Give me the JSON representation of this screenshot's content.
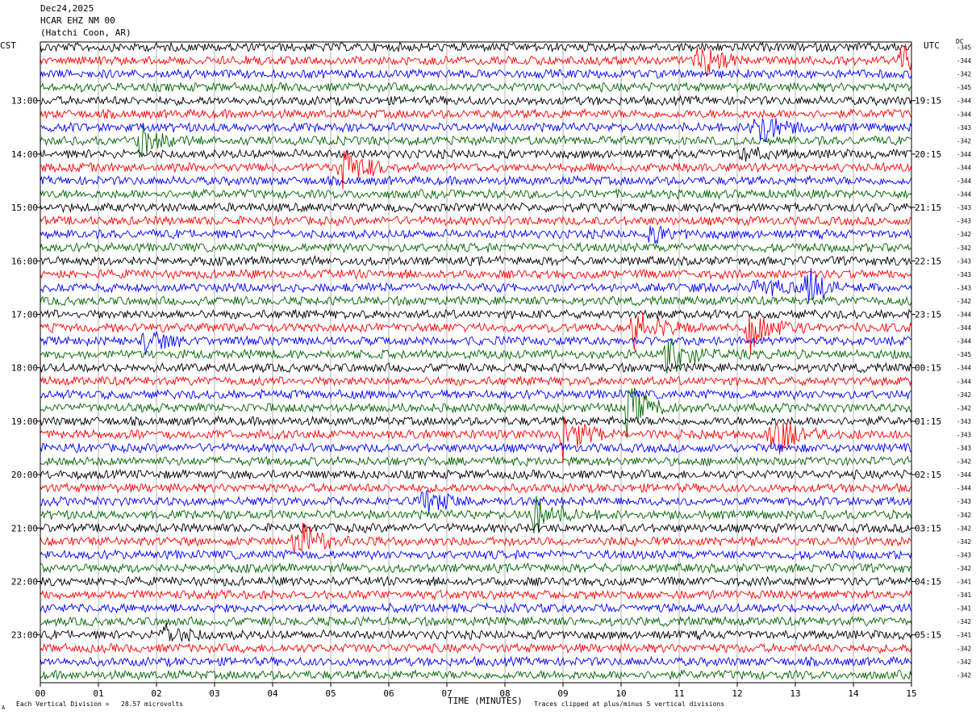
{
  "header": {
    "date": "Dec24,2025",
    "station": "HCAR EHZ NM 00",
    "location": "(Hatchi Coon, AR)",
    "left_tz": "CST",
    "right_tz": "UTC",
    "dc_label": "DC"
  },
  "footer": {
    "scale_text": "Each Vertical Division =   28.57 microvolts",
    "clip_text": "Traces clipped at plus/minus 5 vertical divisions",
    "corner_mark": "A"
  },
  "chart_data": {
    "type": "line",
    "title": "",
    "xlabel": "TIME (MINUTES)",
    "ylabel": "",
    "xlim": [
      0,
      15
    ],
    "x_ticks": [
      "00",
      "01",
      "02",
      "03",
      "04",
      "05",
      "06",
      "07",
      "08",
      "09",
      "10",
      "11",
      "12",
      "13",
      "14",
      "15"
    ],
    "traces_per_hour": 4,
    "trace_interval_minutes": 15,
    "trace_colors": [
      "#000000",
      "#ff0000",
      "#0000ff",
      "#006400"
    ],
    "grid": true,
    "left_time_labels": [
      "13:00",
      "14:00",
      "15:00",
      "16:00",
      "17:00",
      "18:00",
      "19:00",
      "20:00",
      "21:00",
      "22:00",
      "23:00"
    ],
    "left_label_start_row": 4,
    "right_time_labels": [
      "19:15",
      "20:15",
      "21:15",
      "22:15",
      "23:15",
      "00:15",
      "01:15",
      "02:15",
      "03:15",
      "04:15",
      "05:15"
    ],
    "right_label_start_row": 4,
    "dc_offsets": [
      "-345",
      "-344",
      "-342",
      "-345",
      "-344",
      "-344",
      "-343",
      "-342",
      "-344",
      "-344",
      "-344",
      "-344",
      "-343",
      "-343",
      "-342",
      "-342",
      "-343",
      "-343",
      "-343",
      "-342",
      "-344",
      "-344",
      "-344",
      "-345",
      "-344",
      "-344",
      "-342",
      "-342",
      "-343",
      "-343",
      "-343",
      "-342",
      "-344",
      "-344",
      "-343",
      "-342",
      "-342",
      "-342",
      "-343",
      "-342",
      "-341",
      "-341",
      "-341",
      "-342",
      "-341",
      "-342",
      "-342",
      "-342"
    ],
    "events": [
      {
        "row": 1,
        "minute": 11.3,
        "amplitude": 4.5
      },
      {
        "row": 1,
        "minute": 14.8,
        "amplitude": 4.5
      },
      {
        "row": 6,
        "minute": 12.3,
        "amplitude": 5
      },
      {
        "row": 7,
        "minute": 1.7,
        "amplitude": 3
      },
      {
        "row": 8,
        "minute": 12.1,
        "amplitude": 1.5
      },
      {
        "row": 9,
        "minute": 5.2,
        "amplitude": 5
      },
      {
        "row": 14,
        "minute": 10.5,
        "amplitude": 1.5
      },
      {
        "row": 18,
        "minute": 12.3,
        "amplitude": 2.5
      },
      {
        "row": 18,
        "minute": 13.2,
        "amplitude": 4
      },
      {
        "row": 21,
        "minute": 10.2,
        "amplitude": 5
      },
      {
        "row": 21,
        "minute": 12.2,
        "amplitude": 5
      },
      {
        "row": 22,
        "minute": 1.8,
        "amplitude": 2.5
      },
      {
        "row": 23,
        "minute": 10.8,
        "amplitude": 5
      },
      {
        "row": 27,
        "minute": 10.1,
        "amplitude": 5
      },
      {
        "row": 29,
        "minute": 9.0,
        "amplitude": 5
      },
      {
        "row": 29,
        "minute": 12.6,
        "amplitude": 5
      },
      {
        "row": 34,
        "minute": 6.6,
        "amplitude": 3
      },
      {
        "row": 35,
        "minute": 8.5,
        "amplitude": 5
      },
      {
        "row": 37,
        "minute": 4.4,
        "amplitude": 5
      },
      {
        "row": 44,
        "minute": 2.1,
        "amplitude": 3
      }
    ]
  }
}
